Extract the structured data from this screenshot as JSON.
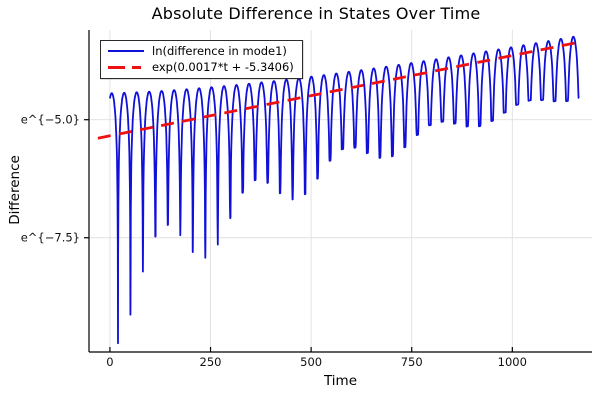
{
  "chart_data": {
    "type": "line",
    "title": "Absolute Difference in States Over Time",
    "xlabel": "Time",
    "ylabel": "Difference",
    "background": "#ffffff",
    "grid": true,
    "grid_color": "#e0e0e0",
    "spine_color": "#000000",
    "legend_position": "top-left",
    "x_axis": {
      "range": [
        -52,
        1198
      ],
      "ticks": [
        {
          "value": 0,
          "label": "0"
        },
        {
          "value": 250,
          "label": "250"
        },
        {
          "value": 500,
          "label": "500"
        },
        {
          "value": 750,
          "label": "750"
        },
        {
          "value": 1000,
          "label": "1000"
        }
      ]
    },
    "y_axis": {
      "scale": "ln",
      "range_ln": [
        -9.92,
        -3.1
      ],
      "ticks": [
        {
          "value_ln": -5.0,
          "label": "e^{−5.0}"
        },
        {
          "value_ln": -7.5,
          "label": "e^{−7.5}"
        }
      ]
    },
    "series": [
      {
        "name": "ln(difference in mode1)",
        "color": "#1010d8",
        "style": "solid",
        "line_width": 1.8,
        "description": "ln of oscillating state difference: rounded humps every ~31 time units with sharp downward spikes at zero crossings; peak envelope rises from ln≈-4.45 at t=0 to ln≈-3.3 at t≈1166; spikes reach ln≈-9.7 early and only ≈-4.8 late, with quasi-periodic depth modulation",
        "model": {
          "t_start": 0,
          "t_end": 1166,
          "sample_step": 0.7,
          "hump_period": 31.0,
          "phase": 1.115,
          "envelope": {
            "slope": 0.0017,
            "intercept": -5.3406,
            "gap0": 0.9,
            "gap_tau": 620
          },
          "spike_depth": {
            "base": 1.0,
            "amp1": 2.6,
            "tau1": 400,
            "amp2": 1.9,
            "tau2": 500,
            "beat_period": 7.3
          }
        }
      },
      {
        "name": "exp(0.0017*t + -5.3406)",
        "color": "#ee1111",
        "style": "dashed",
        "line_width": 2.8,
        "dash": [
          13,
          8.5
        ],
        "model": {
          "slope": 0.0017,
          "intercept": -5.3406,
          "t_start": -30,
          "t_end": 1166
        }
      }
    ]
  }
}
